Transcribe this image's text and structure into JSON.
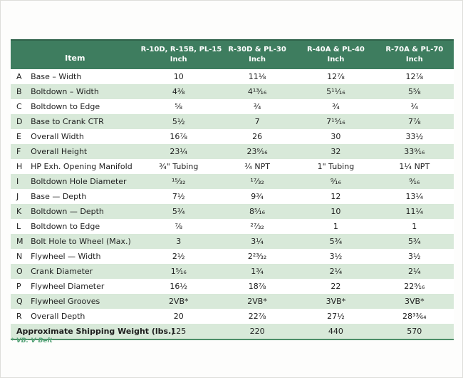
{
  "page": {
    "footnote": "* VB: V Belt"
  },
  "colors": {
    "header_bg": "#3e7d5f",
    "accent": "#2e6149",
    "accent_light": "#4e8f68",
    "row_alt": "#d8e9d9",
    "footnote": "#56a378"
  },
  "table": {
    "item_header": "Item",
    "unit_label": "Inch",
    "column_headers": [
      "R-10D, R-15B, PL-15",
      "R-30D & PL-30",
      "R-40A & PL-40",
      "R-70A & PL-70"
    ],
    "rows": [
      {
        "letter": "A",
        "item": "Base – Width",
        "values": [
          "10",
          "11⅛",
          "12⅞",
          "12⅞"
        ]
      },
      {
        "letter": "B",
        "item": "Boltdown – Width",
        "values": [
          "4⅜",
          "4¹³⁄₁₆",
          "5¹¹⁄₁₆",
          "5⅝"
        ]
      },
      {
        "letter": "C",
        "item": "Boltdown to Edge",
        "values": [
          "⅝",
          "¾",
          "¾",
          "¾"
        ]
      },
      {
        "letter": "D",
        "item": "Base to Crank CTR",
        "values": [
          "5½",
          "7",
          "7¹⁵⁄₁₆",
          "7⅞"
        ]
      },
      {
        "letter": "E",
        "item": "Overall Width",
        "values": [
          "16⅞",
          "26",
          "30",
          "33½"
        ]
      },
      {
        "letter": "F",
        "item": "Overall Height",
        "values": [
          "23¼",
          "23⁹⁄₁₆",
          "32",
          "33⁹⁄₁₆"
        ]
      },
      {
        "letter": "H",
        "item": "HP Exh. Opening Manifold",
        "values": [
          "¾\" Tubing",
          "¾ NPT",
          "1\" Tubing",
          "1¼ NPT"
        ]
      },
      {
        "letter": "I",
        "item": "Boltdown Hole Diameter",
        "values": [
          "¹⁵⁄₃₂",
          "¹⁷⁄₃₂",
          "⁹⁄₁₆",
          "⁹⁄₁₆"
        ]
      },
      {
        "letter": "J",
        "item": "Base — Depth",
        "values": [
          "7½",
          "9¾",
          "12",
          "13¼"
        ]
      },
      {
        "letter": "K",
        "item": "Boltdown — Depth",
        "values": [
          "5¾",
          "8⁵⁄₁₆",
          "10",
          "11¼"
        ]
      },
      {
        "letter": "L",
        "item": "Boltdown to Edge",
        "values": [
          "⅞",
          "²⁷⁄₃₂",
          "1",
          "1"
        ]
      },
      {
        "letter": "M",
        "item": "Bolt Hole to Wheel (Max.)",
        "values": [
          "3",
          "3¼",
          "5¾",
          "5¾"
        ]
      },
      {
        "letter": "N",
        "item": "Flywheel — Width",
        "values": [
          "2½",
          "2²³⁄₃₂",
          "3½",
          "3½"
        ]
      },
      {
        "letter": "O",
        "item": "Crank Diameter",
        "values": [
          "1⁵⁄₁₆",
          "1¾",
          "2¼",
          "2¼"
        ]
      },
      {
        "letter": "P",
        "item": "Flywheel Diameter",
        "values": [
          "16½",
          "18⅞",
          "22",
          "22⁹⁄₁₆"
        ]
      },
      {
        "letter": "Q",
        "item": "Flywheel Grooves",
        "values": [
          "2VB*",
          "2VB*",
          "3VB*",
          "3VB*"
        ]
      },
      {
        "letter": "R",
        "item": "Overall Depth",
        "values": [
          "20",
          "22⅞",
          "27½",
          "28³³⁄₆₄"
        ]
      }
    ],
    "summary_row": {
      "item": "Approximate Shipping Weight (lbs.)",
      "values": [
        "125",
        "220",
        "440",
        "570"
      ]
    }
  }
}
